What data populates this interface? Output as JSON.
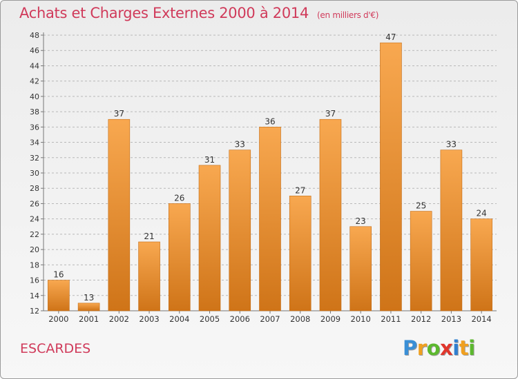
{
  "header": {
    "title": "Achats et Charges Externes 2000 à 2014",
    "subtitle": "(en milliers d'€)"
  },
  "footer": {
    "commune": "ESCARDES",
    "logo_letters": [
      {
        "char": "P",
        "color": "#3a8fd6"
      },
      {
        "char": "r",
        "color": "#f0a020"
      },
      {
        "char": "o",
        "color": "#5cb82e"
      },
      {
        "char": "x",
        "color": "#e0362c"
      },
      {
        "char": "i",
        "color": "#2f7fd0"
      },
      {
        "char": "t",
        "color": "#f0a020"
      },
      {
        "char": "i",
        "color": "#5cb82e"
      }
    ]
  },
  "chart_data": {
    "type": "bar",
    "title": "Achats et Charges Externes 2000 à 2014",
    "subtitle": "(en milliers d'€)",
    "categories": [
      "2000",
      "2001",
      "2002",
      "2003",
      "2004",
      "2005",
      "2006",
      "2007",
      "2008",
      "2009",
      "2010",
      "2011",
      "2012",
      "2013",
      "2014"
    ],
    "values": [
      16,
      13,
      37,
      21,
      26,
      31,
      33,
      36,
      27,
      37,
      23,
      47,
      25,
      33,
      24
    ],
    "ylim": [
      12,
      48
    ],
    "yticks": [
      12,
      14,
      16,
      18,
      20,
      22,
      24,
      26,
      28,
      30,
      32,
      34,
      36,
      38,
      40,
      42,
      44,
      46,
      48
    ],
    "grid": "dashed-horizontal",
    "legend": "none",
    "bar_color_top": "#f8a850",
    "bar_color_bottom": "#cf7418"
  }
}
